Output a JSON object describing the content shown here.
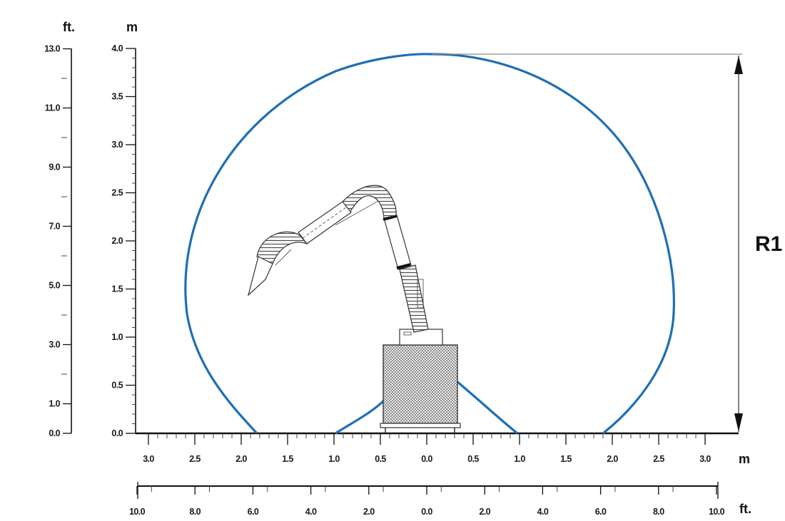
{
  "units": {
    "feet_vertical": "ft.",
    "meters_vertical": "m",
    "meters_horizontal": "m",
    "feet_horizontal": "ft."
  },
  "dimension_label": "R1",
  "axes": {
    "feet_vertical_ticks": [
      "13.0",
      "11.0",
      "9.0",
      "7.0",
      "5.0",
      "3.0",
      "1.0",
      "0.0"
    ],
    "meters_vertical_ticks": [
      "4.0",
      "3.5",
      "3.0",
      "2.5",
      "2.0",
      "1.5",
      "1.0",
      "0.5",
      "0.0"
    ],
    "meters_horizontal_ticks": [
      "3.0",
      "2.5",
      "2.0",
      "1.5",
      "1.0",
      "0.5",
      "0.0",
      "0.5",
      "1.0",
      "1.5",
      "2.0",
      "2.5",
      "3.0"
    ],
    "feet_horizontal_ticks": [
      "10.0",
      "8.0",
      "6.0",
      "4.0",
      "2.0",
      "0.0",
      "2.0",
      "4.0",
      "6.0",
      "8.0",
      "10.0"
    ]
  },
  "colors": {
    "envelope": "#1f6fb3",
    "lines": "#111111"
  }
}
